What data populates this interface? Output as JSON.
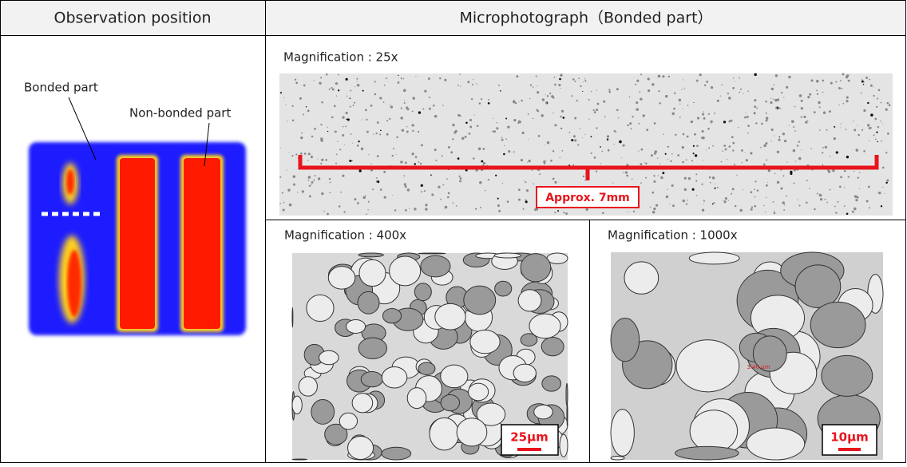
{
  "table": {
    "headers": [
      "Observation position",
      "Microphotograph（Bonded part）"
    ]
  },
  "observation": {
    "labels": [
      "Bonded part",
      "Non-bonded part"
    ]
  },
  "micrographs": [
    {
      "magnification": "Magnification : 25x",
      "annotation": "Approx. 7mm"
    },
    {
      "magnification": "Magnification : 400x",
      "scale_bar": "25μm"
    },
    {
      "magnification": "Magnification : 1000x",
      "scale_bar": "10μm",
      "measurement": "3.40 um"
    }
  ]
}
